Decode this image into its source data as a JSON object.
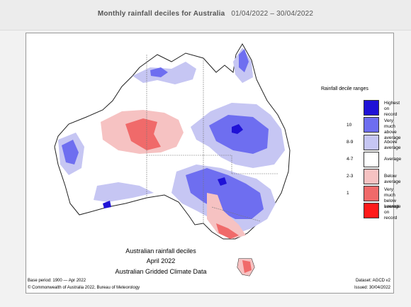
{
  "header": {
    "title": "Monthly rainfall deciles for Australia",
    "date_range": "01/04/2022 – 30/04/2022"
  },
  "legend": {
    "title": "Rainfall decile ranges",
    "items": [
      {
        "decile": "",
        "label_line1": "Highest on",
        "label_line2": "record",
        "color": "#1f12d6"
      },
      {
        "decile": "10",
        "label_line1": "Very much",
        "label_line2": "above average",
        "color": "#6e6ef0"
      },
      {
        "decile": "8-9",
        "label_line1": "Above average",
        "label_line2": "",
        "color": "#c6c6f3"
      },
      {
        "decile": "4-7",
        "label_line1": "Average",
        "label_line2": "",
        "color": "#ffffff"
      },
      {
        "decile": "2-3",
        "label_line1": "Below average",
        "label_line2": "",
        "color": "#f6c2c2"
      },
      {
        "decile": "1",
        "label_line1": "Very much",
        "label_line2": "below average",
        "color": "#f06a6a"
      },
      {
        "decile": "",
        "label_line1": "Lowest on",
        "label_line2": "record",
        "color": "#ff1a1a"
      }
    ]
  },
  "map": {
    "caption_line1": "Australian rainfall deciles",
    "caption_line2": "April 2022",
    "caption_line3": "Australian Gridded Climate Data",
    "base_period": "Base period: 1900 — Apr 2022",
    "dataset": "Dataset: AGCD v2",
    "copyright": "© Commonwealth of Australia 2022, Bureau of Meteorology",
    "issued": "Issued: 30/04/2022"
  }
}
